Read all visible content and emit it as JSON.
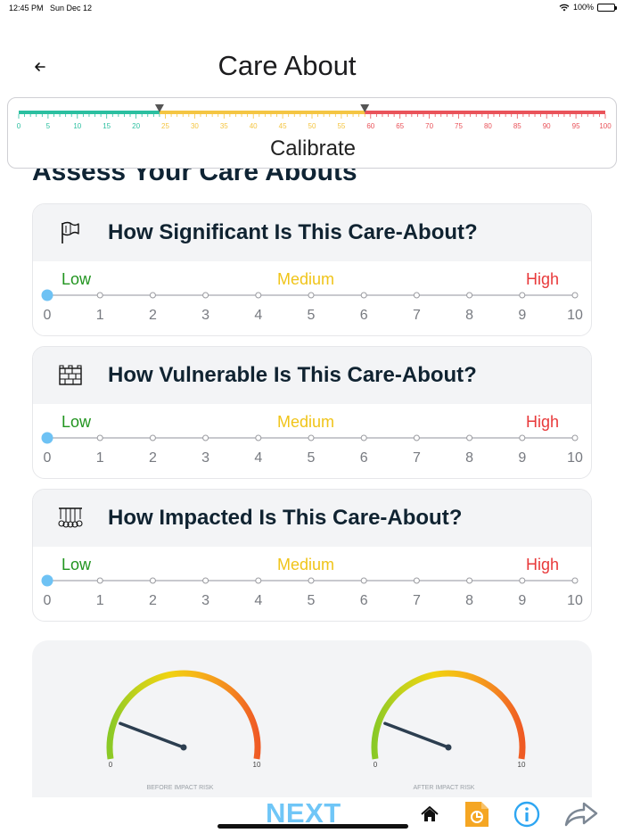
{
  "status": {
    "time": "12:45 PM",
    "date": "Sun Dec 12",
    "battery": "100%"
  },
  "header": {
    "title": "Care About",
    "back_icon": "arrow-left-icon"
  },
  "calibrate": {
    "label": "Calibrate",
    "ticks": [
      "0",
      "5",
      "10",
      "15",
      "20",
      "25",
      "30",
      "35",
      "40",
      "45",
      "50",
      "55",
      "60",
      "65",
      "70",
      "75",
      "80",
      "85",
      "90",
      "95",
      "100"
    ],
    "marker_low": 24,
    "marker_high": 59,
    "colors": {
      "low": "#2bbfa0",
      "mid": "#f4c542",
      "high": "#e9535a"
    }
  },
  "section": {
    "title": "Assess Your Care Abouts"
  },
  "questions": [
    {
      "title": "How Significant Is This Care-About?",
      "icon": "flag-icon",
      "value": 0
    },
    {
      "title": "How Vulnerable Is This Care-About?",
      "icon": "brick-wall-icon",
      "value": 0
    },
    {
      "title": "How Impacted Is This Care-About?",
      "icon": "newtons-cradle-icon",
      "value": 0
    }
  ],
  "scale": {
    "low": "Low",
    "medium": "Medium",
    "high": "High",
    "ticks": [
      "0",
      "1",
      "2",
      "3",
      "4",
      "5",
      "6",
      "7",
      "8",
      "9",
      "10"
    ]
  },
  "gauges": [
    {
      "label": "BEFORE IMPACT RISK",
      "min": "0",
      "max": "10",
      "value": 1.5
    },
    {
      "label": "AFTER IMPACT RISK",
      "min": "0",
      "max": "10",
      "value": 1.5
    }
  ],
  "footer": {
    "next_label": "NEXT",
    "icons": [
      "home-icon",
      "report-icon",
      "info-icon",
      "share-icon"
    ],
    "colors": {
      "next": "#6fc6f7",
      "report": "#f5a623",
      "info": "#2ea6f2",
      "share": "#7c8794"
    }
  }
}
